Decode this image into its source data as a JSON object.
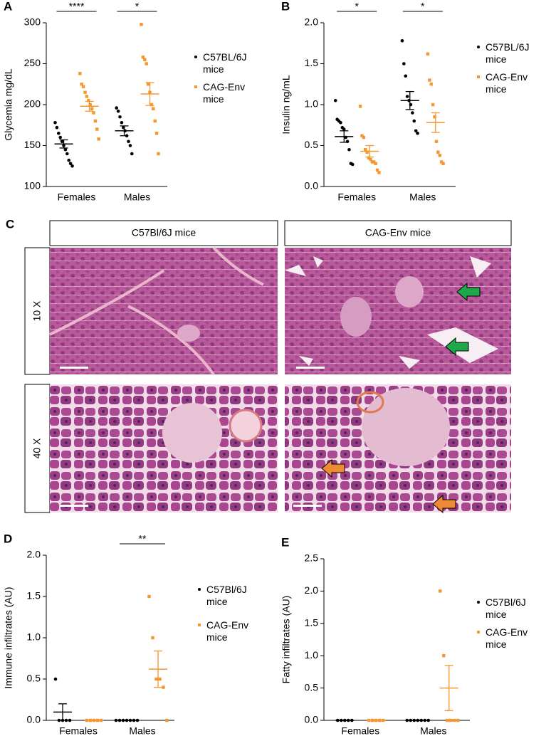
{
  "chart_data": [
    {
      "type": "dot",
      "panel": "A",
      "ylabel": "Glycemia mg/dL",
      "categories": [
        "Females",
        "Males"
      ],
      "annotations": [
        "****",
        "*"
      ],
      "ylim": [
        100,
        300
      ],
      "yticks": [
        100,
        150,
        200,
        250,
        300
      ],
      "series": [
        {
          "name": "C57BL/6J mice",
          "color": "#000000",
          "values": [
            [
              178,
              172,
              165,
              160,
              155,
              150,
              145,
              140,
              132,
              128,
              125
            ],
            [
              196,
              192,
              185,
              178,
              172,
              168,
              162,
              155,
              150,
              140
            ]
          ],
          "means": [
            152,
            168
          ],
          "sems": [
            5,
            6
          ]
        },
        {
          "name": "CAG-Env mice",
          "color": "#f5962e",
          "values": [
            [
              238,
              225,
              222,
              215,
              210,
              205,
              200,
              195,
              190,
              180,
              170,
              158
            ],
            [
              298,
              258,
              255,
              250,
              225,
              215,
              200,
              195,
              180,
              165,
              140
            ]
          ],
          "means": [
            198,
            213
          ],
          "sems": [
            6,
            14
          ]
        }
      ]
    },
    {
      "type": "dot",
      "panel": "B",
      "ylabel": "Insulin ng/mL",
      "categories": [
        "Females",
        "Males"
      ],
      "annotations": [
        "*",
        "*"
      ],
      "ylim": [
        0,
        2
      ],
      "yticks": [
        {
          "value": 0,
          "label": "0.0"
        },
        0.5,
        {
          "value": 1,
          "label": "1.0"
        },
        1.5,
        {
          "value": 2,
          "label": "2.0"
        }
      ],
      "series": [
        {
          "name": "C57BL/6J mice",
          "color": "#000000",
          "values": [
            [
              1.05,
              0.82,
              0.8,
              0.78,
              0.72,
              0.7,
              0.6,
              0.55,
              0.45,
              0.28,
              0.27
            ],
            [
              1.78,
              1.5,
              1.35,
              1.1,
              1.05,
              1.0,
              0.9,
              0.8,
              0.68,
              0.65
            ]
          ],
          "means": [
            0.61,
            1.05
          ],
          "sems": [
            0.07,
            0.11
          ]
        },
        {
          "name": "CAG-Env mice",
          "color": "#f5962e",
          "values": [
            [
              0.98,
              0.62,
              0.6,
              0.45,
              0.42,
              0.35,
              0.33,
              0.3,
              0.3,
              0.28,
              0.2,
              0.17
            ],
            [
              1.62,
              1.3,
              1.25,
              1.0,
              0.85,
              0.55,
              0.42,
              0.38,
              0.3,
              0.28
            ]
          ],
          "means": [
            0.43,
            0.78
          ],
          "sems": [
            0.07,
            0.12
          ]
        }
      ]
    },
    {
      "type": "dot",
      "panel": "D",
      "ylabel": "Immune infiltrates (AU)",
      "categories": [
        "Females",
        "Males"
      ],
      "annotations": [
        null,
        "**"
      ],
      "ylim": [
        0,
        2
      ],
      "yticks": [
        {
          "value": 0,
          "label": "0.0"
        },
        0.5,
        {
          "value": 1,
          "label": "1.0"
        },
        1.5,
        {
          "value": 2,
          "label": "2.0"
        }
      ],
      "series": [
        {
          "name": "C57Bl/6J mice",
          "color": "#000000",
          "values": [
            [
              0.5,
              0,
              0,
              0,
              0
            ],
            [
              0,
              0,
              0,
              0,
              0,
              0,
              0
            ]
          ],
          "means": [
            0.1,
            0
          ],
          "sems": [
            0.1,
            0
          ]
        },
        {
          "name": "CAG-Env mice",
          "color": "#f5962e",
          "values": [
            [
              0,
              0,
              0,
              0,
              0
            ],
            [
              1.5,
              1.0,
              0.5,
              0.5,
              0.4,
              0
            ]
          ],
          "means": [
            0,
            0.62
          ],
          "sems": [
            0,
            0.22
          ]
        }
      ]
    },
    {
      "type": "dot",
      "panel": "E",
      "ylabel": "Fatty infiltrates (AU)",
      "categories": [
        "Females",
        "Males"
      ],
      "ylim": [
        0,
        2.5
      ],
      "yticks": [
        {
          "value": 0,
          "label": "0.0"
        },
        0.5,
        {
          "value": 1,
          "label": "1.0"
        },
        1.5,
        {
          "value": 2,
          "label": "2.0"
        },
        2.5
      ],
      "series": [
        {
          "name": "C57Bl/6J mice",
          "color": "#000000",
          "values": [
            [
              0,
              0,
              0,
              0,
              0
            ],
            [
              0,
              0,
              0,
              0,
              0,
              0,
              0
            ]
          ],
          "means": [
            0,
            0
          ],
          "sems": [
            0,
            0
          ]
        },
        {
          "name": "CAG-Env mice",
          "color": "#f5962e",
          "values": [
            [
              0,
              0,
              0,
              0,
              0
            ],
            [
              2.0,
              1.0,
              0,
              0,
              0,
              0
            ]
          ],
          "means": [
            0,
            0.5
          ],
          "sems": [
            0,
            0.35
          ]
        }
      ]
    }
  ],
  "histology": {
    "panel": "C",
    "columns": [
      "C57Bl/6J mice",
      "CAG-Env mice"
    ],
    "rows": [
      "10 X",
      "40 X"
    ]
  }
}
